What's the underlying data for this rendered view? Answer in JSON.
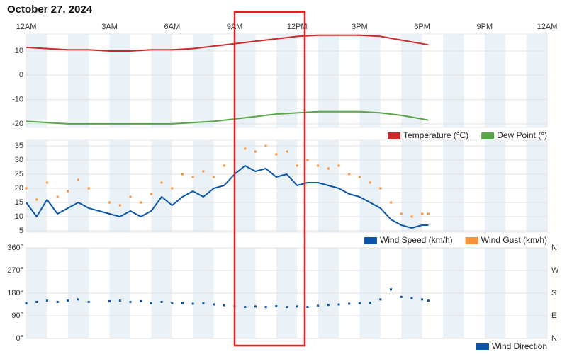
{
  "title": "October 27, 2024",
  "chart_data": [
    {
      "type": "line",
      "xlim": [
        0,
        25
      ],
      "xticks": [
        {
          "value": 0,
          "label": "12AM"
        },
        {
          "value": 4,
          "label": "3AM"
        },
        {
          "value": 7,
          "label": "6AM"
        },
        {
          "value": 10,
          "label": "9AM"
        },
        {
          "value": 13,
          "label": "12PM"
        },
        {
          "value": 16,
          "label": "3PM"
        },
        {
          "value": 19,
          "label": "6PM"
        },
        {
          "value": 22,
          "label": "9PM"
        },
        {
          "value": 25,
          "label": "12AM"
        }
      ],
      "ylim": [
        -21.5,
        17
      ],
      "yticks": [
        -20,
        -10,
        0,
        10
      ],
      "grid": true,
      "series": [
        {
          "name": "Temperature (°C)",
          "color": "#cc2a2a",
          "mark": "line",
          "x": [
            0,
            1,
            2,
            3,
            4,
            5,
            6,
            7,
            8,
            9,
            10,
            11,
            12,
            13,
            14,
            15,
            16,
            17,
            18,
            19,
            19.3
          ],
          "values": [
            11.5,
            11,
            10.5,
            10.5,
            10,
            10,
            10.5,
            10.5,
            11,
            12,
            13,
            14,
            15,
            16,
            16.5,
            16.5,
            16.5,
            16,
            14.5,
            13,
            12.5
          ]
        },
        {
          "name": "Dew Point (°)",
          "color": "#5aa547",
          "mark": "line",
          "x": [
            0,
            1,
            2,
            3,
            4,
            5,
            6,
            7,
            8,
            9,
            10,
            11,
            12,
            13,
            14,
            15,
            16,
            17,
            18,
            19,
            19.3
          ],
          "values": [
            -19,
            -19.5,
            -20,
            -20,
            -20,
            -20,
            -20,
            -20,
            -19.5,
            -19,
            -18,
            -17,
            -16,
            -15.5,
            -15,
            -15,
            -15,
            -15.5,
            -16.5,
            -18,
            -18.5
          ]
        }
      ]
    },
    {
      "type": "line",
      "xlim": [
        0,
        25
      ],
      "ylim": [
        4.5,
        37
      ],
      "yticks": [
        5,
        10,
        15,
        20,
        25,
        30,
        35
      ],
      "grid": true,
      "series": [
        {
          "name": "Wind Speed (km/h)",
          "color": "#0b56a8",
          "mark": "line",
          "x": [
            0,
            0.5,
            1,
            1.5,
            2,
            2.5,
            3,
            4,
            4.5,
            5,
            5.5,
            6,
            6.5,
            7,
            7.5,
            8,
            8.5,
            9,
            9.5,
            10,
            10.5,
            11,
            11.5,
            12,
            12.5,
            13,
            13.5,
            14,
            14.5,
            15,
            15.5,
            16,
            16.5,
            17,
            17.5,
            18,
            18.5,
            19,
            19.3
          ],
          "values": [
            15,
            10,
            16,
            11,
            13,
            15,
            13,
            11,
            10,
            12,
            10,
            12,
            17,
            14,
            17,
            19,
            17,
            20,
            21,
            25,
            28,
            26,
            27,
            24,
            25,
            21,
            22,
            22,
            21,
            20,
            18,
            17,
            15,
            13,
            9,
            7,
            6,
            7,
            7
          ]
        },
        {
          "name": "Wind Gust (km/h)",
          "color": "#f7923a",
          "mark": "dot",
          "x": [
            0,
            0.5,
            1,
            1.5,
            2,
            2.5,
            3,
            4,
            4.5,
            5,
            5.5,
            6,
            6.5,
            7,
            7.5,
            8,
            8.5,
            9,
            9.5,
            10,
            10.5,
            11,
            11.5,
            12,
            12.5,
            13,
            13.5,
            14,
            14.5,
            15,
            15.5,
            16,
            16.5,
            17,
            17.5,
            18,
            18.5,
            19,
            19.3
          ],
          "values": [
            20,
            16,
            22,
            17,
            19,
            23,
            20,
            15,
            14,
            17,
            15,
            18,
            22,
            20,
            25,
            24,
            26,
            24,
            28,
            30,
            34,
            33,
            35,
            32,
            33,
            28,
            30,
            28,
            27,
            28,
            25,
            24,
            22,
            20,
            15,
            11,
            10,
            11,
            11
          ]
        }
      ]
    },
    {
      "type": "scatter",
      "xlim": [
        0,
        25
      ],
      "ylim": [
        0,
        360
      ],
      "yticks": [
        {
          "value": 0,
          "label": "0°"
        },
        {
          "value": 90,
          "label": "90°"
        },
        {
          "value": 180,
          "label": "180°"
        },
        {
          "value": 270,
          "label": "270°"
        },
        {
          "value": 360,
          "label": "360°"
        }
      ],
      "y2lim": [
        0,
        360
      ],
      "y2ticks": [
        {
          "value": 0,
          "label": "N"
        },
        {
          "value": 90,
          "label": "E"
        },
        {
          "value": 180,
          "label": "S"
        },
        {
          "value": 270,
          "label": "W"
        },
        {
          "value": 360,
          "label": "N"
        }
      ],
      "grid": true,
      "series": [
        {
          "name": "Wind Direction",
          "color": "#0b56a8",
          "mark": "dot",
          "x": [
            0,
            0.5,
            1,
            1.5,
            2,
            2.5,
            3,
            4,
            4.5,
            5,
            5.5,
            6,
            6.5,
            7,
            7.5,
            8,
            8.5,
            9,
            9.5,
            10,
            10.5,
            11,
            11.5,
            12,
            12.5,
            13,
            13.5,
            14,
            14.5,
            15,
            15.5,
            16,
            16.5,
            17,
            17.5,
            18,
            18.5,
            19,
            19.3
          ],
          "values": [
            140,
            145,
            150,
            145,
            150,
            155,
            145,
            148,
            150,
            145,
            148,
            140,
            145,
            142,
            140,
            138,
            140,
            135,
            132,
            128,
            125,
            127,
            125,
            128,
            125,
            127,
            125,
            130,
            133,
            135,
            138,
            140,
            142,
            155,
            195,
            165,
            160,
            155,
            150
          ]
        }
      ]
    }
  ]
}
